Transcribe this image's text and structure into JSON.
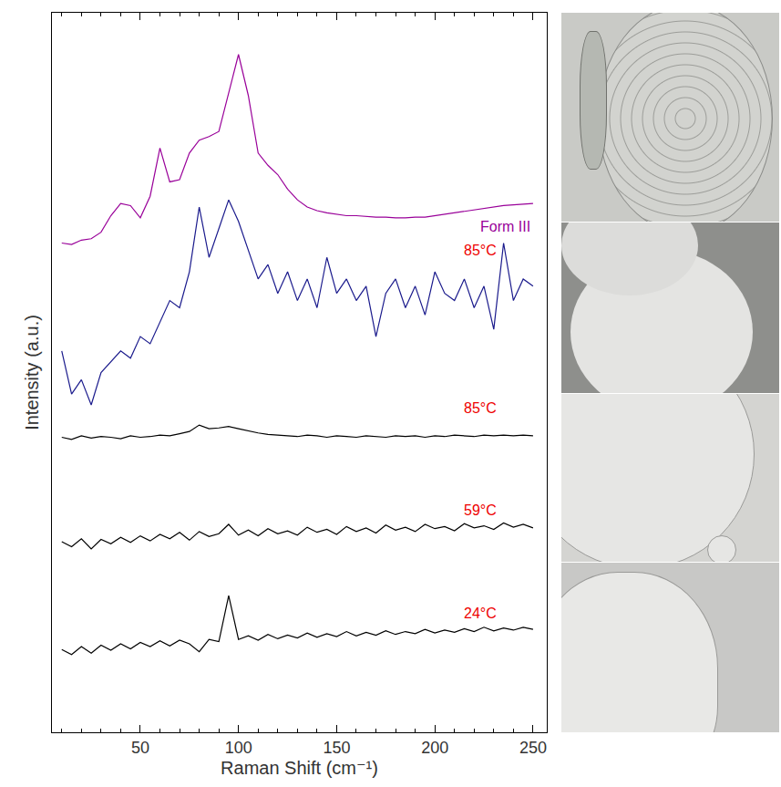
{
  "chart_data": {
    "type": "line",
    "x_label": "Raman Shift (cm⁻¹)",
    "y_label": "Intensity (a.u.)",
    "xlim": [
      5,
      257
    ],
    "xticks": [
      50,
      100,
      150,
      200,
      250
    ],
    "ylim": [
      0,
      100
    ],
    "tick_labels": "x",
    "grid": false,
    "x": [
      10,
      15,
      20,
      25,
      30,
      35,
      40,
      45,
      50,
      55,
      60,
      65,
      70,
      75,
      80,
      85,
      90,
      95,
      100,
      105,
      110,
      115,
      120,
      125,
      130,
      135,
      140,
      145,
      150,
      155,
      160,
      165,
      170,
      175,
      180,
      185,
      190,
      195,
      200,
      205,
      210,
      215,
      220,
      225,
      230,
      235,
      240,
      245,
      250
    ],
    "series": [
      {
        "name": "Form III",
        "color": "#990099",
        "values": [
          68.0,
          67.8,
          68.4,
          68.6,
          69.5,
          71.8,
          73.5,
          73.2,
          71.5,
          74.5,
          81.2,
          76.5,
          76.8,
          80.5,
          82.3,
          82.8,
          83.5,
          89.0,
          94.2,
          88.5,
          80.5,
          78.8,
          77.5,
          75.5,
          74.0,
          73.0,
          72.5,
          72.2,
          72.0,
          71.8,
          71.8,
          71.7,
          71.6,
          71.6,
          71.5,
          71.5,
          71.6,
          71.6,
          71.8,
          72.0,
          72.2,
          72.4,
          72.6,
          72.8,
          73.0,
          73.2,
          73.3,
          73.4,
          73.5
        ]
      },
      {
        "name": "85°C",
        "color": "#1a1a8c",
        "values": [
          53,
          47,
          49,
          45.5,
          50,
          51.5,
          53,
          52,
          55,
          54,
          57,
          60,
          59,
          64,
          73,
          66,
          70,
          74,
          71,
          67,
          63,
          65,
          61,
          64,
          60,
          63,
          59,
          66,
          61,
          63,
          60,
          62,
          55,
          61,
          63,
          59,
          62,
          58,
          64,
          61,
          60,
          63,
          59,
          62,
          56,
          68,
          60,
          63,
          62
        ]
      },
      {
        "name": "85°C",
        "color": "#000000",
        "values": [
          41,
          40.7,
          41.2,
          40.9,
          41.1,
          41,
          40.8,
          41.2,
          41,
          41.1,
          41.3,
          41.2,
          41.5,
          41.8,
          42.7,
          42.2,
          42.3,
          42.5,
          42.2,
          41.9,
          41.6,
          41.4,
          41.3,
          41.2,
          41.1,
          41.3,
          41.2,
          41,
          41.2,
          41.1,
          41,
          41.2,
          41.1,
          41,
          41.2,
          41.1,
          41.2,
          41,
          41.2,
          41.1,
          41.3,
          41.2,
          41.1,
          41.3,
          41.2,
          41.3,
          41.2,
          41.3,
          41.2
        ]
      },
      {
        "name": "59°C",
        "color": "#000000",
        "values": [
          26.5,
          25.8,
          26.9,
          25.5,
          26.8,
          26.2,
          27.1,
          26.4,
          27.3,
          26.6,
          27.5,
          26.9,
          27.8,
          26.7,
          27.9,
          27.2,
          27.6,
          28.9,
          27.4,
          28.1,
          27.3,
          28.3,
          27.6,
          28.0,
          27.4,
          28.5,
          27.8,
          28.2,
          27.5,
          28.6,
          27.9,
          28.4,
          27.7,
          28.8,
          28.1,
          28.5,
          27.9,
          28.9,
          28.3,
          28.6,
          28.0,
          29.0,
          28.4,
          28.7,
          28.2,
          29.1,
          28.5,
          28.9,
          28.4
        ]
      },
      {
        "name": "24°C",
        "color": "#000000",
        "values": [
          11.5,
          10.8,
          11.9,
          11.0,
          12.1,
          11.4,
          12.3,
          11.6,
          12.5,
          11.9,
          12.7,
          12.0,
          12.8,
          12.3,
          11.2,
          12.9,
          12.6,
          19.0,
          12.9,
          13.4,
          12.8,
          13.6,
          13.0,
          13.5,
          13.1,
          13.8,
          13.2,
          13.7,
          13.3,
          14.0,
          13.4,
          13.9,
          13.5,
          14.1,
          13.6,
          14.0,
          13.7,
          14.3,
          13.8,
          14.2,
          13.9,
          14.4,
          14.0,
          14.6,
          14.1,
          14.5,
          14.2,
          14.6,
          14.3
        ]
      }
    ]
  }
}
